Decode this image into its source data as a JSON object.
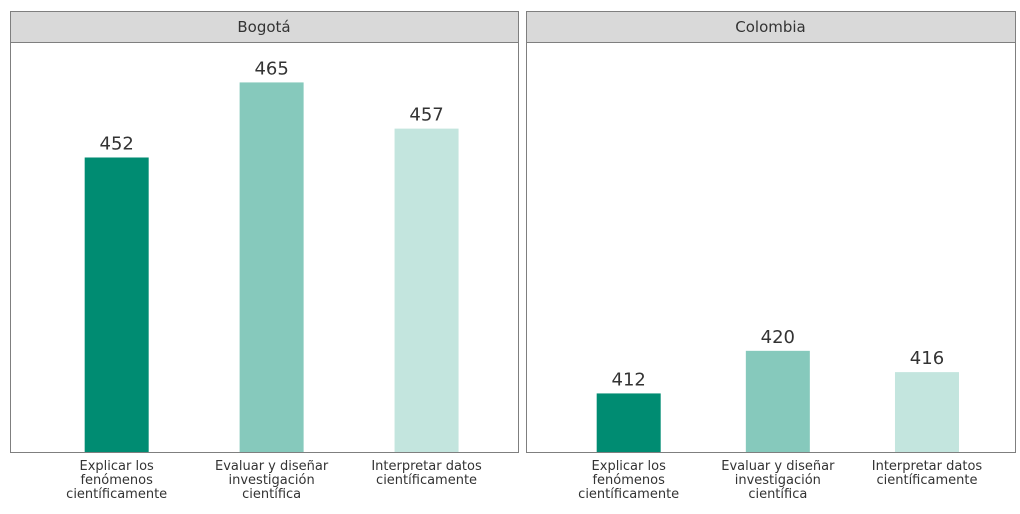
{
  "chart_data": [
    {
      "type": "bar",
      "title": "Bogotá",
      "categories": [
        "Explicar los fenómenos científicamente",
        "Evaluar y diseñar investigación científica",
        "Interpretar datos científicamente"
      ],
      "values": [
        452,
        465,
        457
      ],
      "colors": [
        "#008c72",
        "#86c9bc",
        "#c3e5de"
      ],
      "ylim": [
        401,
        472
      ]
    },
    {
      "type": "bar",
      "title": "Colombia",
      "categories": [
        "Explicar los fenómenos científicamente",
        "Evaluar y diseñar investigación científica",
        "Interpretar datos científicamente"
      ],
      "values": [
        412,
        420,
        416
      ],
      "colors": [
        "#008c72",
        "#86c9bc",
        "#c3e5de"
      ],
      "ylim": [
        401,
        478
      ]
    }
  ]
}
